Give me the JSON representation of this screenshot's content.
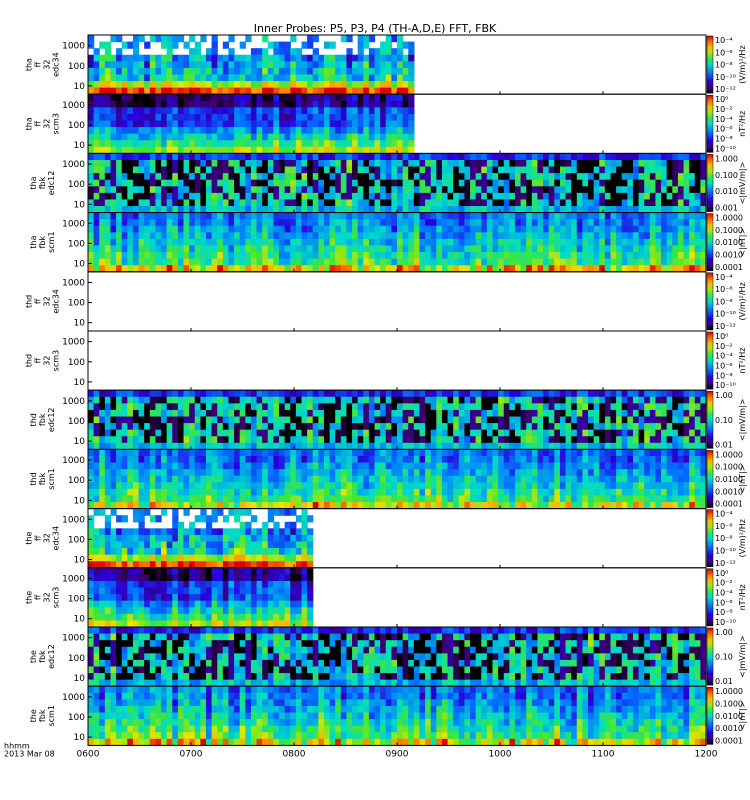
{
  "title": "Inner Probes: P5, P3, P4 (TH-A,D,E) FFT, FBK",
  "corner": {
    "line1": "hhmm",
    "line2": "2013 Mar 08"
  },
  "chart_data": {
    "type": "heatmap",
    "xaxis": {
      "ticks": [
        "0600",
        "0700",
        "0800",
        "0900",
        "1000",
        "1100",
        "1200"
      ],
      "range": [
        "0600",
        "1200"
      ]
    },
    "panels": [
      {
        "id": "tha-ff-32-edc34",
        "label": [
          "tha",
          "ff",
          "32",
          "edc34"
        ],
        "yticks": [
          "1000",
          "100",
          "10"
        ],
        "unit": "(V/m)²/Hz",
        "cbar": [
          "10⁻⁴",
          "10⁻⁶",
          "10⁻⁸",
          "10⁻¹⁰",
          "10⁻¹²"
        ],
        "coverage": [
          0.0,
          0.53
        ],
        "style": "ff"
      },
      {
        "id": "tha-ff-32-scm3",
        "label": [
          "tha",
          "ff",
          "32",
          "scm3"
        ],
        "yticks": [
          "1000",
          "100",
          "10"
        ],
        "unit": "nT²/Hz",
        "cbar": [
          "10⁰",
          "10⁻²",
          "10⁻⁴",
          "10⁻⁶",
          "10⁻⁸",
          "10⁻¹⁰"
        ],
        "coverage": [
          0.0,
          0.53
        ],
        "style": "ffscm"
      },
      {
        "id": "tha-fbk-edc12",
        "label": [
          "tha",
          "fbk",
          "edc12"
        ],
        "yticks": [
          "1000",
          "100",
          "10"
        ],
        "unit": "<|mV/m|>",
        "cbar": [
          "1.000",
          "0.100",
          "0.010",
          "0.001"
        ],
        "coverage": [
          0.0,
          1.0
        ],
        "style": "fbke"
      },
      {
        "id": "tha-fbk-scm1",
        "label": [
          "tha",
          "fbk",
          "scm1"
        ],
        "yticks": [
          "1000",
          "100",
          "10"
        ],
        "unit": "<|nT|>",
        "cbar": [
          "1.0000",
          "0.1000",
          "0.0100",
          "0.0010",
          "0.0001"
        ],
        "coverage": [
          0.0,
          1.0
        ],
        "style": "fbkb"
      },
      {
        "id": "thd-ff-32-edc34",
        "label": [
          "thd",
          "ff",
          "32",
          "edc34"
        ],
        "yticks": [
          "1000",
          "100",
          "10"
        ],
        "unit": "(V/m)²/Hz",
        "cbar": [
          "10⁻⁴",
          "10⁻⁶",
          "10⁻⁸",
          "10⁻¹⁰",
          "10⁻¹²"
        ],
        "coverage": [
          0,
          0
        ],
        "style": "none"
      },
      {
        "id": "thd-ff-32-scm3",
        "label": [
          "thd",
          "ff",
          "32",
          "scm3"
        ],
        "yticks": [
          "1000",
          "100",
          "10"
        ],
        "unit": "nT²/Hz",
        "cbar": [
          "10⁰",
          "10⁻²",
          "10⁻⁴",
          "10⁻⁶",
          "10⁻⁸",
          "10⁻¹⁰"
        ],
        "coverage": [
          0,
          0
        ],
        "style": "none"
      },
      {
        "id": "thd-fbk-edc12",
        "label": [
          "thd",
          "fbk",
          "edc12"
        ],
        "yticks": [
          "1000",
          "100",
          "10"
        ],
        "unit": "<|mV/m|>",
        "cbar": [
          "1.00",
          "0.10",
          "0.01"
        ],
        "coverage": [
          0.0,
          1.0
        ],
        "style": "fbke"
      },
      {
        "id": "thd-fbk-scm1",
        "label": [
          "thd",
          "fbk",
          "scm1"
        ],
        "yticks": [
          "1000",
          "100",
          "10"
        ],
        "unit": "<|nT|>",
        "cbar": [
          "1.0000",
          "0.1000",
          "0.0100",
          "0.0010",
          "0.0001"
        ],
        "coverage": [
          0.0,
          1.0
        ],
        "style": "fbkb"
      },
      {
        "id": "the-ff-32-edc34",
        "label": [
          "the",
          "ff",
          "32",
          "edc34"
        ],
        "yticks": [
          "1000",
          "100",
          "10"
        ],
        "unit": "(V/m)²/Hz",
        "cbar": [
          "10⁻⁴",
          "10⁻⁶",
          "10⁻⁸",
          "10⁻¹⁰",
          "10⁻¹²"
        ],
        "coverage": [
          0.0,
          0.365
        ],
        "style": "ff"
      },
      {
        "id": "the-ff-32-scm3",
        "label": [
          "the",
          "ff",
          "32",
          "scm3"
        ],
        "yticks": [
          "1000",
          "100",
          "10"
        ],
        "unit": "nT²/Hz",
        "cbar": [
          "10⁰",
          "10⁻²",
          "10⁻⁴",
          "10⁻⁶",
          "10⁻⁸",
          "10⁻¹⁰"
        ],
        "coverage": [
          0.0,
          0.365
        ],
        "style": "ffscm"
      },
      {
        "id": "the-fbk-edc12",
        "label": [
          "the",
          "fbk",
          "edc12"
        ],
        "yticks": [
          "1000",
          "100",
          "10"
        ],
        "unit": "<|mV/m|>",
        "cbar": [
          "1.00",
          "0.10",
          "0.01"
        ],
        "coverage": [
          0.0,
          1.0
        ],
        "style": "fbke"
      },
      {
        "id": "the-fbk-scm1",
        "label": [
          "the",
          "fbk",
          "scm1"
        ],
        "yticks": [
          "1000",
          "100",
          "10"
        ],
        "unit": "<|nT|>",
        "cbar": [
          "1.0000",
          "0.1000",
          "0.0100",
          "0.0010",
          "0.0001"
        ],
        "coverage": [
          0.0,
          1.0
        ],
        "style": "fbkb"
      }
    ]
  }
}
